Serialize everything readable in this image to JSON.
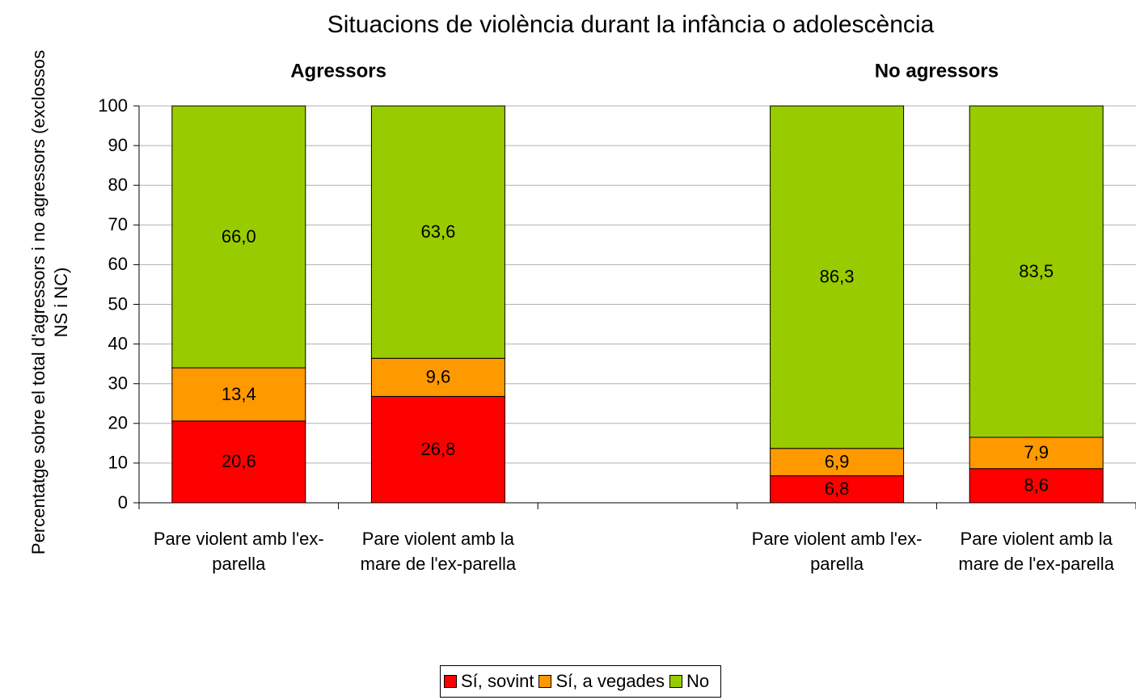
{
  "chart_data": {
    "type": "stacked_bar",
    "title": "Situacions de violència durant la infància o adolescència",
    "y_axis_label": "Percentatge sobre el total d'agressors i no agressors (exclossos NS i NC)",
    "annotations": [
      {
        "text": "Agressors",
        "categories": [
          0,
          1
        ]
      },
      {
        "text": "No agressors",
        "categories": [
          3,
          4
        ]
      }
    ],
    "categories": [
      "Pare violent amb l'ex-parella",
      "Pare violent amb la mare de l'ex-parella",
      null,
      "Pare violent amb l'ex-parella",
      "Pare violent amb la mare de l'ex-parella"
    ],
    "series": [
      {
        "name": "Sí, sovint",
        "color": "#ff0000",
        "values": [
          20.6,
          26.8,
          null,
          6.8,
          8.6
        ],
        "value_labels": [
          "20,6",
          "26,8",
          null,
          "6,8",
          "8,6"
        ]
      },
      {
        "name": "Sí, a vegades",
        "color": "#ff9900",
        "values": [
          13.4,
          9.6,
          null,
          6.9,
          7.9
        ],
        "value_labels": [
          "13,4",
          "9,6",
          null,
          "6,9",
          "7,9"
        ]
      },
      {
        "name": "No",
        "color": "#99cc00",
        "values": [
          66.0,
          63.6,
          null,
          86.3,
          83.5
        ],
        "value_labels": [
          "66,0",
          "63,6",
          null,
          "86,3",
          "83,5"
        ]
      }
    ],
    "ylim": [
      0,
      100
    ],
    "yticks": [
      0,
      10,
      20,
      30,
      40,
      50,
      60,
      70,
      80,
      90,
      100
    ],
    "grid": true,
    "legend": "bottom"
  }
}
